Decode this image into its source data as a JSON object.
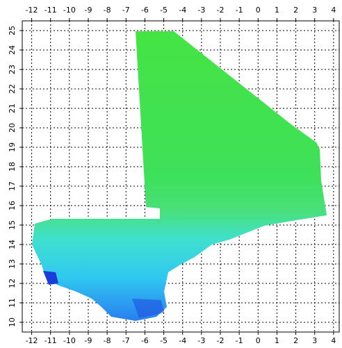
{
  "chart_data": {
    "type": "map",
    "xlim": [
      -12.5,
      4.3
    ],
    "ylim": [
      9.5,
      25.5
    ],
    "xticks": [
      -12,
      -11,
      -10,
      -9,
      -8,
      -7,
      -6,
      -5,
      -4,
      -3,
      -2,
      -1,
      0,
      1,
      2,
      3,
      4
    ],
    "yticks": [
      10,
      11,
      12,
      13,
      14,
      15,
      16,
      17,
      18,
      19,
      20,
      21,
      22,
      23,
      24,
      25
    ],
    "grid": true
  }
}
